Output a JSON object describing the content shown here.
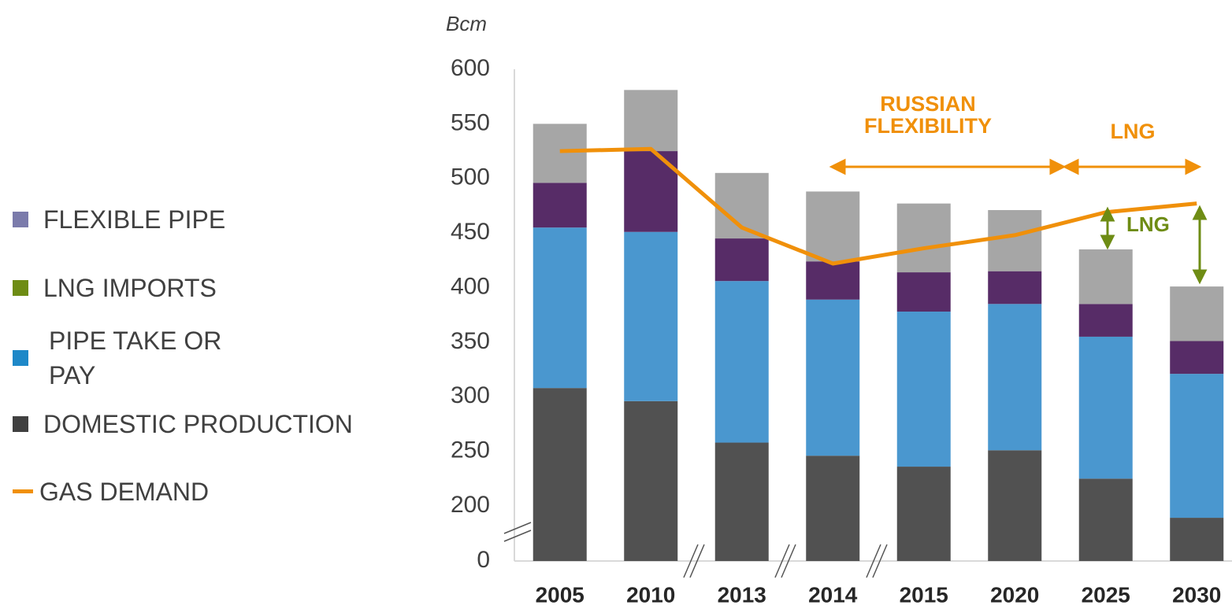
{
  "chart_data": {
    "type": "stacked_bar",
    "unit_label": "Bcm",
    "categories": [
      "2005",
      "2010",
      "2013",
      "2014",
      "2015",
      "2020",
      "2025",
      "2030"
    ],
    "series": [
      {
        "name": "DOMESTIC PRODUCTION",
        "color": "#515151",
        "legend_color": "#404040",
        "values": [
          308,
          296,
          258,
          246,
          236,
          251,
          225,
          157
        ]
      },
      {
        "name": "PIPE TAKE OR PAY",
        "color": "#4a97cf",
        "legend_color": "#1e88c8",
        "values": [
          147,
          155,
          148,
          143,
          142,
          134,
          130,
          164
        ]
      },
      {
        "name": "FLEXIBLE PIPE",
        "color": "#572c67",
        "legend_color": "#7b7bab",
        "values": [
          41,
          74,
          39,
          35,
          36,
          30,
          30,
          30
        ]
      },
      {
        "name": "LNG IMPORTS",
        "color": "#a6a6a6",
        "legend_color": "#6e8c14",
        "values": [
          54,
          56,
          60,
          64,
          63,
          56,
          50,
          50
        ]
      }
    ],
    "line": {
      "name": "GAS DEMAND",
      "color": "#f0900a",
      "values": [
        525,
        527,
        455,
        422,
        436,
        448,
        469,
        477
      ]
    },
    "ylim": [
      0,
      600
    ],
    "y_break": [
      0,
      200
    ],
    "yticks": [
      0,
      200,
      250,
      300,
      350,
      400,
      450,
      500,
      550,
      600
    ],
    "annotations": [
      "RUSSIAN",
      "FLEXIBILITY",
      "LNG",
      "LNG"
    ]
  }
}
